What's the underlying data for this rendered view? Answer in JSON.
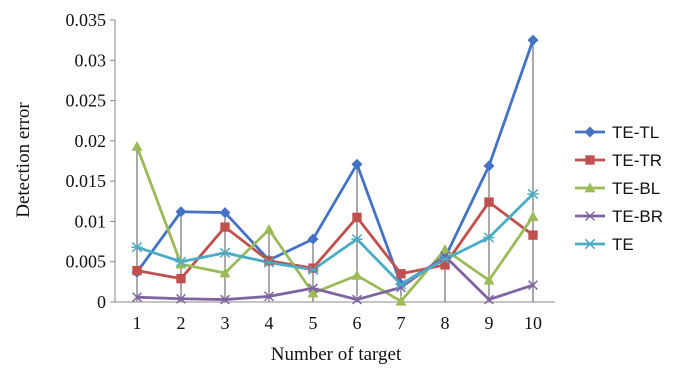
{
  "chart_data": {
    "type": "line",
    "title": "",
    "xlabel": "Number of target",
    "ylabel": "Detection error",
    "x": [
      1,
      2,
      3,
      4,
      5,
      6,
      7,
      8,
      9,
      10
    ],
    "x_tick_labels": [
      "1",
      "2",
      "3",
      "4",
      "5",
      "6",
      "7",
      "8",
      "9",
      "10"
    ],
    "y_tick_labels": [
      "0",
      "0.005",
      "0.01",
      "0.015",
      "0.02",
      "0.025",
      "0.03",
      "0.035"
    ],
    "ylim": [
      0,
      0.035
    ],
    "grid": false,
    "drop_lines": true,
    "legend_position": "right",
    "series": [
      {
        "name": "TE-TL",
        "color": "#4472C4",
        "marker": "diamond",
        "values": [
          0.0037,
          0.0112,
          0.0111,
          0.0052,
          0.0078,
          0.0171,
          0.0022,
          0.0055,
          0.0169,
          0.0325
        ]
      },
      {
        "name": "TE-TR",
        "color": "#C0504D",
        "marker": "square",
        "values": [
          0.0039,
          0.0029,
          0.0093,
          0.0051,
          0.0042,
          0.0105,
          0.0035,
          0.0046,
          0.0124,
          0.0083
        ]
      },
      {
        "name": "TE-BL",
        "color": "#9BBB59",
        "marker": "triangle",
        "values": [
          0.0193,
          0.0047,
          0.0036,
          0.009,
          0.0011,
          0.0033,
          0.0001,
          0.0065,
          0.0027,
          0.0106
        ]
      },
      {
        "name": "TE-BR",
        "color": "#8064A2",
        "marker": "x",
        "values": [
          0.0006,
          0.0004,
          0.0003,
          0.0007,
          0.0017,
          0.0003,
          0.0018,
          0.0057,
          0.0003,
          0.0021
        ]
      },
      {
        "name": "TE",
        "color": "#4BACC6",
        "marker": "star",
        "values": [
          0.0068,
          0.005,
          0.0061,
          0.0049,
          0.004,
          0.0078,
          0.0022,
          0.0053,
          0.008,
          0.0134
        ]
      }
    ]
  }
}
